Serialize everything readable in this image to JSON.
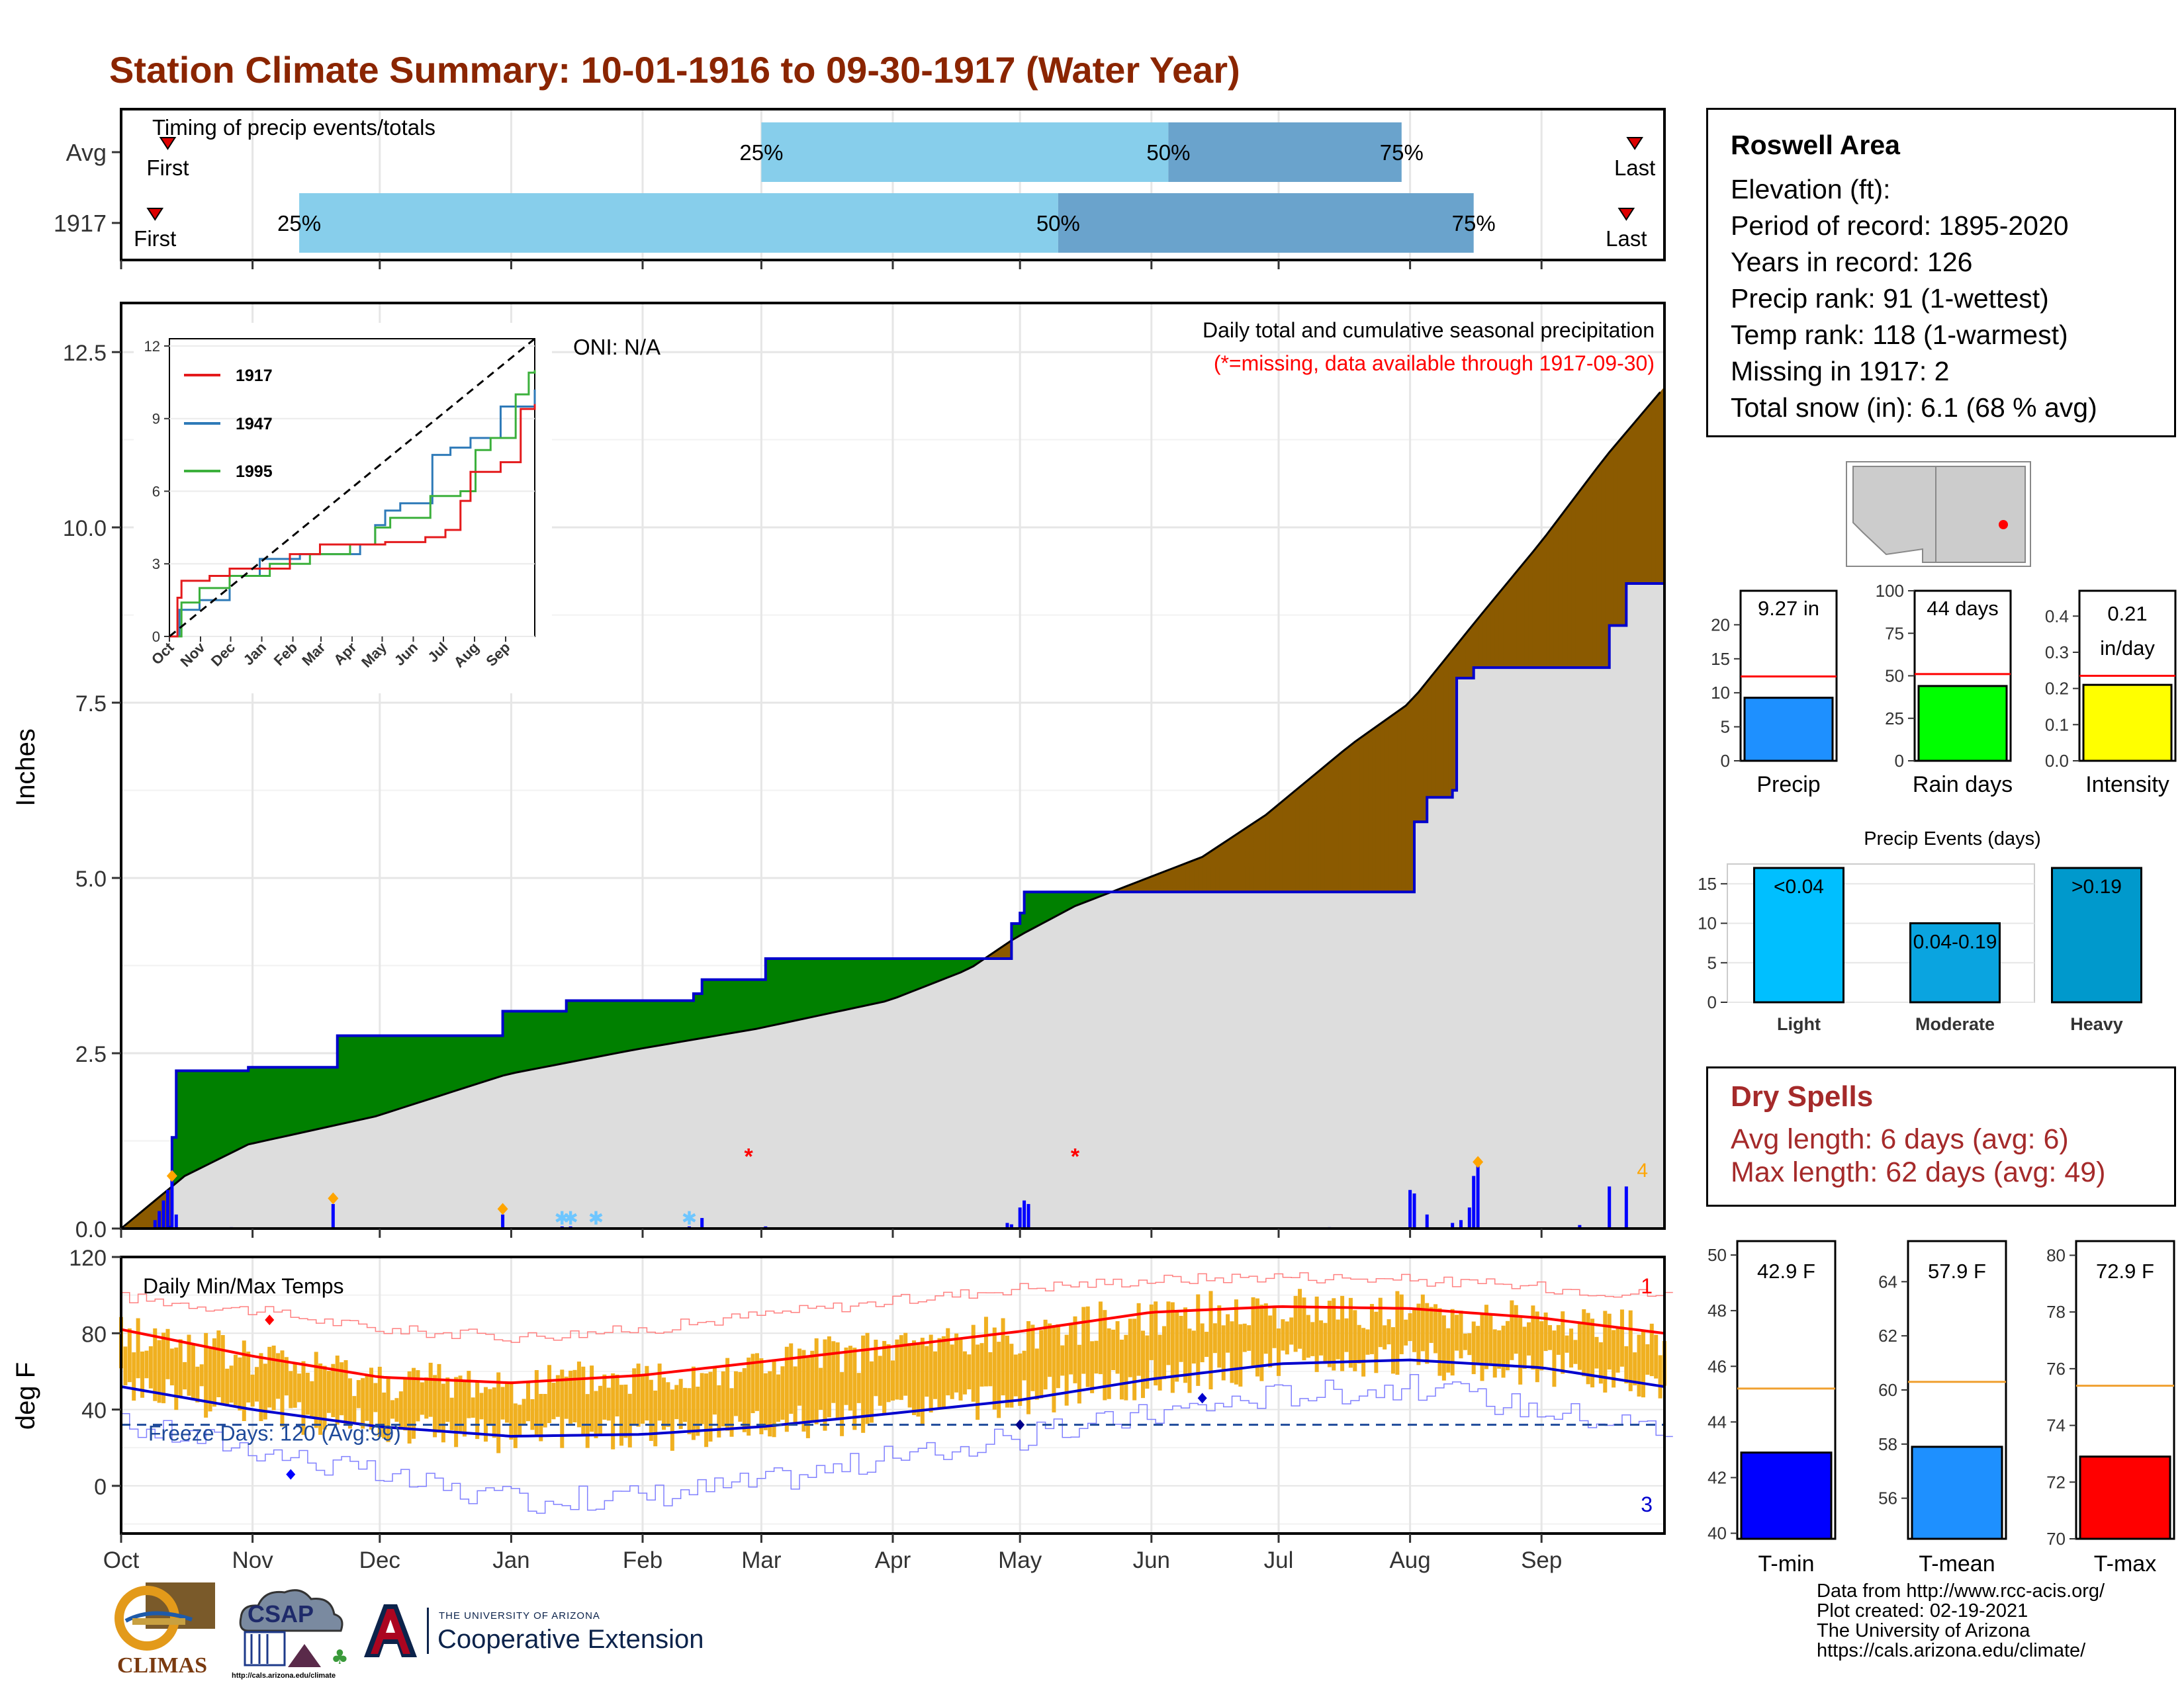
{
  "title": "Station Climate Summary: 10-01-1916 to 09-30-1917 (Water Year)",
  "station": {
    "name": "Roswell Area",
    "lines": [
      "Elevation (ft):",
      "Period of record: 1895-2020",
      "Years in record: 126",
      "Precip rank: 91 (1-wettest)",
      "Temp rank: 118 (1-warmest)",
      "Missing in 1917: 2",
      "Total snow (in): 6.1 (68 % avg)"
    ]
  },
  "dry_spells": {
    "title": "Dry Spells",
    "avg_line": "Avg length: 6 days (avg: 6)",
    "max_line": "Max length: 62 days (avg: 49)"
  },
  "credits": [
    "Data from http://www.rcc-acis.org/",
    "Plot created: 02-19-2021",
    "The University of Arizona",
    "https://cals.arizona.edu/climate/"
  ],
  "logos": {
    "climas": "CLIMAS",
    "csap": "CSAP",
    "csap_url": "http://cals.arizona.edu/climate",
    "ua_line1": "THE UNIVERSITY OF ARIZONA",
    "ua_line2": "Cooperative Extension"
  },
  "colors": {
    "title": "#8b2500",
    "accum_fill": "#8b5a00",
    "deficit_fill": "#008000",
    "normal_fill": "#dddddd",
    "obs_line": "#0000cd",
    "quartile_light": "#87ceeb",
    "quartile_dark": "#6aa3cc",
    "temp_bar": "#f0b020",
    "tmax_line": "#ff0000",
    "tmin_line": "#0000cd"
  },
  "chart_data": [
    {
      "id": "timing",
      "type": "bar",
      "title": "Timing of precip events/totals",
      "rows": [
        {
          "label": "Avg",
          "first_day": 11,
          "last_day": 357,
          "q25_day": 151,
          "q50_day": 247,
          "q75_day": 302,
          "labels": {
            "first": "First",
            "last": "Last",
            "q25": "25%",
            "q50": "50%",
            "q75": "75%"
          }
        },
        {
          "label": "1917",
          "first_day": 8,
          "last_day": 355,
          "q25_day": 42,
          "q50_day": 221,
          "q75_day": 319,
          "labels": {
            "first": "First",
            "last": "Last",
            "q25": "25%",
            "q50": "50%",
            "q75": "75%"
          }
        }
      ]
    },
    {
      "id": "precip",
      "type": "area",
      "ylabel": "Inches",
      "ylim": [
        0,
        13.2
      ],
      "yticks": [
        0.0,
        2.5,
        5.0,
        7.5,
        10.0,
        12.5
      ],
      "ytick_labels": [
        "0.0",
        "2.5",
        "5.0",
        "7.5",
        "10.0",
        "12.5"
      ],
      "months": [
        "Oct",
        "Nov",
        "Dec",
        "Jan",
        "Feb",
        "Mar",
        "Apr",
        "May",
        "Jun",
        "Jul",
        "Aug",
        "Sep"
      ],
      "month_start_days": [
        0,
        31,
        61,
        92,
        123,
        151,
        182,
        212,
        243,
        273,
        304,
        335
      ],
      "annotation": "Daily total and cumulative seasonal precipitation",
      "missing_note": "(*=missing, data available through 1917-09-30)",
      "oni": "ONI: N/A",
      "right_count": "4",
      "normal_cumulative": [
        [
          0,
          0
        ],
        [
          15,
          0.75
        ],
        [
          30,
          1.2
        ],
        [
          60,
          1.6
        ],
        [
          91,
          2.2
        ],
        [
          121,
          2.55
        ],
        [
          150,
          2.85
        ],
        [
          181,
          3.25
        ],
        [
          200,
          3.7
        ],
        [
          211,
          4.15
        ],
        [
          225,
          4.6
        ],
        [
          240,
          4.95
        ],
        [
          255,
          5.3
        ],
        [
          270,
          5.9
        ],
        [
          290,
          6.9
        ],
        [
          304,
          7.5
        ],
        [
          320,
          8.7
        ],
        [
          335,
          9.8
        ],
        [
          350,
          11.0
        ],
        [
          364,
          12.0
        ]
      ],
      "observed_cumulative": [
        [
          0,
          0
        ],
        [
          11,
          0.02
        ],
        [
          12,
          1.3
        ],
        [
          13,
          2.25
        ],
        [
          30,
          2.3
        ],
        [
          50,
          2.3
        ],
        [
          51,
          2.75
        ],
        [
          89,
          2.75
        ],
        [
          90,
          3.1
        ],
        [
          104,
          3.1
        ],
        [
          105,
          3.25
        ],
        [
          134,
          3.25
        ],
        [
          135,
          3.35
        ],
        [
          137,
          3.55
        ],
        [
          151,
          3.55
        ],
        [
          152,
          3.85
        ],
        [
          199,
          3.85
        ],
        [
          200,
          3.85
        ],
        [
          210,
          4.35
        ],
        [
          212,
          4.5
        ],
        [
          213,
          4.8
        ],
        [
          235,
          4.8
        ],
        [
          280,
          4.8
        ],
        [
          304,
          4.8
        ],
        [
          305,
          5.8
        ],
        [
          308,
          6.15
        ],
        [
          314,
          6.25
        ],
        [
          315,
          7.85
        ],
        [
          319,
          8.0
        ],
        [
          350,
          8.0
        ],
        [
          351,
          8.6
        ],
        [
          355,
          9.2
        ],
        [
          364,
          9.3
        ]
      ],
      "daily_precip": [
        [
          8,
          0.12
        ],
        [
          9,
          0.25
        ],
        [
          10,
          0.4
        ],
        [
          11,
          0.55
        ],
        [
          12,
          0.75
        ],
        [
          13,
          0.2
        ],
        [
          26,
          0.02
        ],
        [
          50,
          0.35
        ],
        [
          90,
          0.2
        ],
        [
          104,
          0.03
        ],
        [
          106,
          0.03
        ],
        [
          134,
          0.03
        ],
        [
          137,
          0.15
        ],
        [
          152,
          0.03
        ],
        [
          209,
          0.08
        ],
        [
          210,
          0.06
        ],
        [
          212,
          0.3
        ],
        [
          213,
          0.4
        ],
        [
          214,
          0.35
        ],
        [
          285,
          0.02
        ],
        [
          304,
          0.55
        ],
        [
          305,
          0.5
        ],
        [
          308,
          0.2
        ],
        [
          314,
          0.08
        ],
        [
          316,
          0.12
        ],
        [
          318,
          0.3
        ],
        [
          319,
          0.75
        ],
        [
          320,
          0.95
        ],
        [
          344,
          0.05
        ],
        [
          351,
          0.6
        ],
        [
          355,
          0.6
        ]
      ],
      "markers_missing_days": [
        148,
        225
      ],
      "markers_snow_days": [
        104,
        106,
        112,
        134
      ]
    },
    {
      "id": "temps",
      "type": "line",
      "title": "Daily Min/Max Temps",
      "ylabel": "deg F",
      "ylim": [
        -25,
        120
      ],
      "yticks": [
        0,
        40,
        80,
        120
      ],
      "freeze_label": "Freeze Days: 120 (Avg:99)",
      "freeze_line": 32,
      "record_high_count": "1",
      "record_low_count": "3",
      "tmax_normal": [
        [
          0,
          82
        ],
        [
          31,
          68
        ],
        [
          61,
          57
        ],
        [
          92,
          54
        ],
        [
          123,
          58
        ],
        [
          151,
          65
        ],
        [
          182,
          73
        ],
        [
          212,
          81
        ],
        [
          243,
          91
        ],
        [
          273,
          94
        ],
        [
          304,
          93
        ],
        [
          335,
          88
        ],
        [
          364,
          80
        ]
      ],
      "tmin_normal": [
        [
          0,
          52
        ],
        [
          31,
          40
        ],
        [
          61,
          31
        ],
        [
          92,
          26
        ],
        [
          123,
          27
        ],
        [
          151,
          31
        ],
        [
          182,
          38
        ],
        [
          212,
          45
        ],
        [
          243,
          56
        ],
        [
          273,
          64
        ],
        [
          304,
          66
        ],
        [
          335,
          62
        ],
        [
          364,
          52
        ]
      ],
      "record_high": [
        [
          0,
          99
        ],
        [
          31,
          92
        ],
        [
          61,
          82
        ],
        [
          92,
          78
        ],
        [
          123,
          82
        ],
        [
          151,
          90
        ],
        [
          182,
          97
        ],
        [
          212,
          104
        ],
        [
          243,
          108
        ],
        [
          273,
          110
        ],
        [
          304,
          108
        ],
        [
          335,
          104
        ],
        [
          364,
          100
        ]
      ],
      "record_low": [
        [
          0,
          32
        ],
        [
          31,
          20
        ],
        [
          61,
          5
        ],
        [
          92,
          -8
        ],
        [
          123,
          -5
        ],
        [
          151,
          2
        ],
        [
          182,
          15
        ],
        [
          212,
          25
        ],
        [
          243,
          38
        ],
        [
          273,
          48
        ],
        [
          304,
          52
        ],
        [
          335,
          40
        ],
        [
          364,
          30
        ]
      ]
    },
    {
      "id": "ytd_gauges",
      "type": "bar",
      "items": [
        {
          "label": "Precip",
          "value_text": "9.27 in",
          "value": 9.27,
          "avg": 12.4,
          "ylim": [
            0,
            25
          ],
          "yticks": [
            0,
            5,
            10,
            15,
            20
          ],
          "color": "#1e90ff"
        },
        {
          "label": "Rain days",
          "value_text": "44 days",
          "value": 44,
          "avg": 51,
          "ylim": [
            0,
            100
          ],
          "yticks": [
            0,
            25,
            50,
            75,
            100
          ],
          "color": "#00ff00"
        },
        {
          "label": "Intensity",
          "value_text": "0.21\nin/day",
          "value_line1": "0.21",
          "value_line2": "in/day",
          "value": 0.21,
          "avg": 0.235,
          "ylim": [
            0,
            0.47
          ],
          "yticks": [
            0.0,
            0.1,
            0.2,
            0.3,
            0.4
          ],
          "color": "#ffff00"
        }
      ]
    },
    {
      "id": "precip_events",
      "type": "bar",
      "title": "Precip Events (days)",
      "categories": [
        "Light",
        "Moderate",
        "Heavy"
      ],
      "bar_labels": [
        "<0.04",
        "0.04-0.19",
        ">0.19"
      ],
      "values": [
        17,
        10,
        17
      ],
      "ylim": [
        0,
        17.5
      ],
      "yticks": [
        0,
        5,
        10,
        15
      ],
      "colors": [
        "#00bfff",
        "#0aa4e0",
        "#0099cc"
      ]
    },
    {
      "id": "temp_gauges",
      "type": "bar",
      "items": [
        {
          "label": "T-min",
          "value_text": "42.9 F",
          "value": 42.9,
          "avg": 45.2,
          "ylim": [
            39.8,
            50.5
          ],
          "yticks": [
            40,
            42,
            44,
            46,
            48,
            50
          ],
          "color": "#0000ff"
        },
        {
          "label": "T-mean",
          "value_text": "57.9 F",
          "value": 57.9,
          "avg": 60.3,
          "ylim": [
            54.5,
            65.5
          ],
          "yticks": [
            56,
            58,
            60,
            62,
            64
          ],
          "color": "#1e90ff"
        },
        {
          "label": "T-max",
          "value_text": "72.9 F",
          "value": 72.9,
          "avg": 75.4,
          "ylim": [
            70,
            80.5
          ],
          "yticks": [
            70,
            72,
            74,
            76,
            78,
            80
          ],
          "color": "#ff0000"
        }
      ]
    }
  ]
}
